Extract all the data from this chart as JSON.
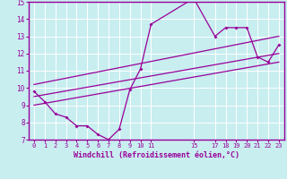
{
  "title": "",
  "xlabel": "Windchill (Refroidissement éolien,°C)",
  "background_color": "#c8eef0",
  "line_color": "#990099",
  "grid_color": "#ffffff",
  "xlim": [
    -0.5,
    23.5
  ],
  "ylim": [
    7,
    15
  ],
  "xticks": [
    0,
    1,
    2,
    3,
    4,
    5,
    6,
    7,
    8,
    9,
    10,
    11,
    15,
    17,
    18,
    19,
    20,
    21,
    22,
    23
  ],
  "yticks": [
    7,
    8,
    9,
    10,
    11,
    12,
    13,
    14,
    15
  ],
  "main_series": {
    "x": [
      0,
      1,
      2,
      3,
      4,
      5,
      6,
      7,
      8,
      9,
      10,
      11,
      15,
      17,
      18,
      19,
      20,
      21,
      22,
      23
    ],
    "y": [
      9.8,
      9.2,
      8.5,
      8.3,
      7.8,
      7.8,
      7.3,
      7.0,
      7.6,
      9.9,
      11.1,
      13.7,
      15.2,
      13.0,
      13.5,
      13.5,
      13.5,
      11.8,
      11.5,
      12.5
    ]
  },
  "straight_lines": [
    {
      "x": [
        0,
        23
      ],
      "y": [
        9.0,
        11.5
      ]
    },
    {
      "x": [
        0,
        23
      ],
      "y": [
        9.5,
        12.0
      ]
    },
    {
      "x": [
        0,
        23
      ],
      "y": [
        10.2,
        13.0
      ]
    }
  ]
}
